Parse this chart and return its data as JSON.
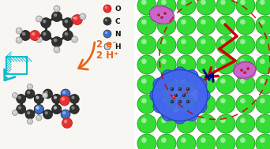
{
  "legend_items": [
    {
      "label": "O",
      "color": "#e83030"
    },
    {
      "label": "C",
      "color": "#303030"
    },
    {
      "label": "N",
      "color": "#3a6fcc"
    },
    {
      "label": "H",
      "color": "#cccccc"
    }
  ],
  "reaction_text_1": "2 e⁻",
  "reaction_text_2": "2 H⁺",
  "reaction_color": "#e8651a",
  "bg_color": "#ffffff",
  "green_color": "#33dd33",
  "green_edge": "#229922",
  "blue_blob_color": "#4466ee",
  "pink_blob_color": "#cc66cc",
  "red_arrow_color": "#cc0000",
  "navy_arrow_color": "#000088",
  "dashed_color": "#cc0000",
  "cyan_color": "#11bbcc"
}
